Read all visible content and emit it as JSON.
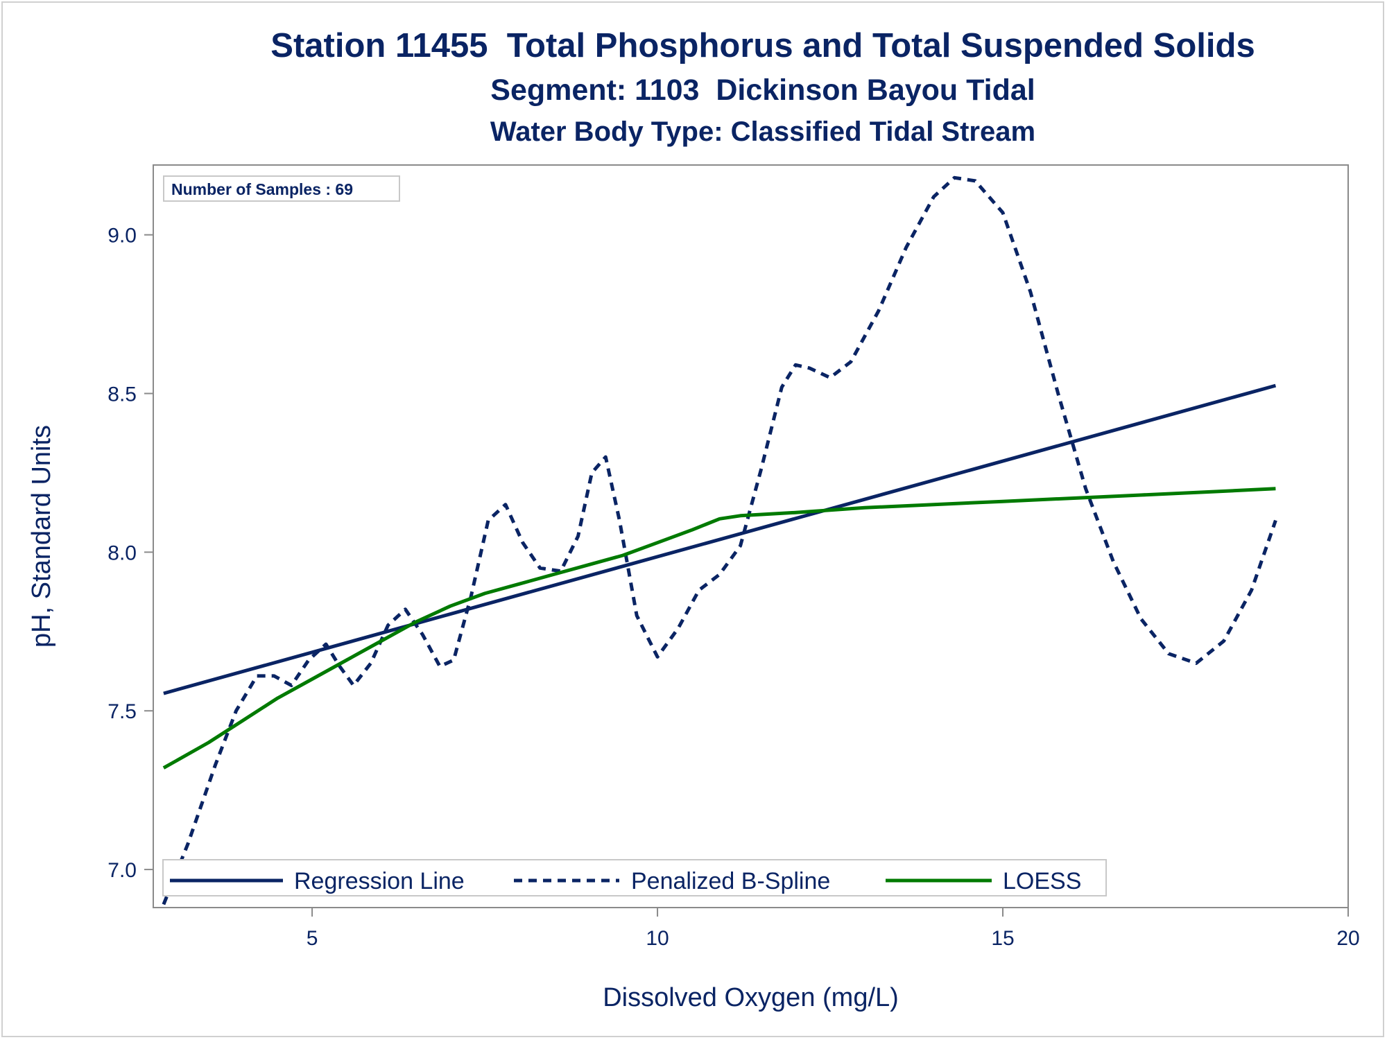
{
  "chart_data": {
    "type": "line",
    "title": "Station 11455  Total Phosphorus and Total Suspended Solids",
    "subtitle": "Segment: 1103  Dickinson Bayou Tidal",
    "subtitle2": "Water Body Type: Classified Tidal Stream",
    "xlabel": "Dissolved Oxygen (mg/L)",
    "ylabel": "pH, Standard Units",
    "xlim": [
      2.7,
      20.0
    ],
    "ylim": [
      6.88,
      9.22
    ],
    "xticks": [
      5,
      10,
      15,
      20
    ],
    "xtick_labels": [
      "5",
      "10",
      "15",
      "20"
    ],
    "yticks": [
      7.0,
      7.5,
      8.0,
      8.5,
      9.0
    ],
    "ytick_labels": [
      "7.0",
      "7.5",
      "8.0",
      "8.5",
      "9.0"
    ],
    "grid": false,
    "legend_placement": "bottom-left",
    "inset_label": "Number of Samples : 69",
    "series": [
      {
        "name": "Regression Line",
        "style": "solid",
        "color": "#0a2464",
        "x": [
          2.85,
          18.95
        ],
        "y": [
          7.555,
          8.525
        ]
      },
      {
        "name": "Penalized B-Spline",
        "style": "dashed",
        "color": "#0a2464",
        "x": [
          2.85,
          3.2,
          3.6,
          3.9,
          4.2,
          4.45,
          4.7,
          4.95,
          5.2,
          5.4,
          5.6,
          5.85,
          6.1,
          6.35,
          6.6,
          6.85,
          7.05,
          7.3,
          7.55,
          7.8,
          8.05,
          8.3,
          8.6,
          8.85,
          9.05,
          9.25,
          9.45,
          9.7,
          10.0,
          10.3,
          10.6,
          10.9,
          11.2,
          11.5,
          11.8,
          12.0,
          12.2,
          12.5,
          12.8,
          13.2,
          13.6,
          14.0,
          14.3,
          14.6,
          15.0,
          15.4,
          15.8,
          16.2,
          16.6,
          17.0,
          17.4,
          17.8,
          18.2,
          18.6,
          18.95
        ],
        "y": [
          6.89,
          7.08,
          7.33,
          7.5,
          7.61,
          7.61,
          7.58,
          7.66,
          7.71,
          7.64,
          7.58,
          7.65,
          7.77,
          7.82,
          7.74,
          7.64,
          7.66,
          7.86,
          8.1,
          8.15,
          8.03,
          7.95,
          7.94,
          8.05,
          8.25,
          8.3,
          8.1,
          7.8,
          7.67,
          7.76,
          7.88,
          7.93,
          8.02,
          8.26,
          8.52,
          8.59,
          8.58,
          8.55,
          8.6,
          8.76,
          8.96,
          9.12,
          9.18,
          9.17,
          9.07,
          8.82,
          8.5,
          8.2,
          7.97,
          7.79,
          7.68,
          7.65,
          7.72,
          7.88,
          8.1
        ]
      },
      {
        "name": "LOESS",
        "style": "solid",
        "color": "#007a00",
        "x": [
          2.85,
          3.5,
          4.0,
          4.5,
          5.0,
          5.5,
          6.0,
          6.5,
          7.0,
          7.5,
          8.0,
          8.5,
          9.0,
          9.5,
          10.0,
          10.5,
          10.9,
          11.2,
          12.0,
          13.0,
          14.0,
          15.0,
          16.0,
          17.0,
          18.0,
          18.95
        ],
        "y": [
          7.32,
          7.4,
          7.47,
          7.54,
          7.6,
          7.66,
          7.72,
          7.78,
          7.83,
          7.87,
          7.9,
          7.93,
          7.96,
          7.99,
          8.03,
          8.07,
          8.105,
          8.115,
          8.125,
          8.14,
          8.15,
          8.16,
          8.17,
          8.18,
          8.19,
          8.2
        ]
      }
    ]
  }
}
